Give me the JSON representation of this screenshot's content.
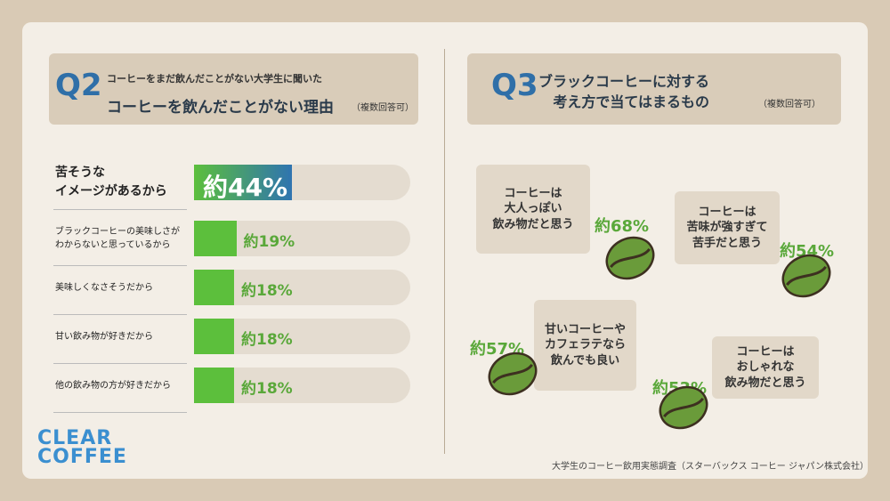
{
  "chart_data": [
    {
      "type": "hbar",
      "label": "Q2",
      "subtitle": "コーヒーをまだ飲んだことがない大学生に聞いた",
      "title": "コーヒーを飲んだことがない理由",
      "note": "（複数回答可）",
      "categories": [
        "苦そうな\nイメージがあるから",
        "ブラックコーヒーの美味しさが\nわからないと思っているから",
        "美味しくなさそうだから",
        "甘い飲み物が好きだから",
        "他の飲み物の方が好きだから"
      ],
      "values": [
        44,
        19,
        18,
        18,
        18
      ],
      "value_labels": [
        "約44%",
        "約19%",
        "約18%",
        "約18%",
        "約18%"
      ],
      "xlim": [
        0,
        100
      ],
      "color": "#5cbf3c"
    },
    {
      "type": "callout",
      "label": "Q3",
      "title": "ブラックコーヒーに対する\n考え方で当てはまるもの",
      "note": "（複数回答可）",
      "categories": [
        "コーヒーは\n大人っぽい\n飲み物だと思う",
        "コーヒーは\n苦味が強すぎて\n苦手だと思う",
        "甘いコーヒーや\nカフェラテなら\n飲んでも良い",
        "コーヒーは\nおしゃれな\n飲み物だと思う"
      ],
      "values": [
        68,
        54,
        57,
        53
      ],
      "value_labels": [
        "約68%",
        "約54%",
        "約57%",
        "約53%"
      ],
      "color": "#6a9b3a"
    }
  ],
  "footer": {
    "logo": "CLEAR\nCOFFEE",
    "source": "大学生のコーヒー飲用実態調査（スターバックス コーヒー ジャパン株式会社）"
  }
}
